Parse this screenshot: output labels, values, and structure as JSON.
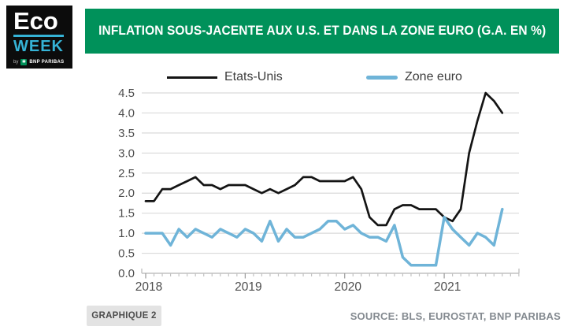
{
  "logo": {
    "line1": "Eco",
    "line2": "WEEK",
    "byline": "by",
    "brand": "BNP PARIBAS"
  },
  "banner": {
    "title": "INFLATION SOUS-JACENTE AUX U.S. ET DANS LA ZONE EURO (G.A. EN %)",
    "bg_color": "#00915a"
  },
  "legend": [
    {
      "label": "Etats-Unis",
      "color": "#141414"
    },
    {
      "label": "Zone euro",
      "color": "#6fb4d8"
    }
  ],
  "footer": {
    "figure_label": "GRAPHIQUE 2",
    "source": "SOURCE: BLS, EUROSTAT, BNP PARIBAS"
  },
  "chart_data": {
    "type": "line",
    "x_start": "2018-01",
    "x_frequency": "monthly",
    "x_tick_labels": [
      "2018",
      "2019",
      "2020",
      "2021"
    ],
    "ylim": [
      0.0,
      4.5
    ],
    "y_tick_step": 0.5,
    "grid": "horizontal",
    "legend_position": "top",
    "series": [
      {
        "name": "Etats-Unis",
        "color": "#141414",
        "values": [
          1.8,
          1.8,
          2.1,
          2.1,
          2.2,
          2.3,
          2.4,
          2.2,
          2.2,
          2.1,
          2.2,
          2.2,
          2.2,
          2.1,
          2.0,
          2.1,
          2.0,
          2.1,
          2.2,
          2.4,
          2.4,
          2.3,
          2.3,
          2.3,
          2.3,
          2.4,
          2.1,
          1.4,
          1.2,
          1.2,
          1.6,
          1.7,
          1.7,
          1.6,
          1.6,
          1.6,
          1.4,
          1.3,
          1.6,
          3.0,
          3.8,
          4.5,
          4.3,
          4.0
        ]
      },
      {
        "name": "Zone euro",
        "color": "#6fb4d8",
        "values": [
          1.0,
          1.0,
          1.0,
          0.7,
          1.1,
          0.9,
          1.1,
          1.0,
          0.9,
          1.1,
          1.0,
          0.9,
          1.1,
          1.0,
          0.8,
          1.3,
          0.8,
          1.1,
          0.9,
          0.9,
          1.0,
          1.1,
          1.3,
          1.3,
          1.1,
          1.2,
          1.0,
          0.9,
          0.9,
          0.8,
          1.2,
          0.4,
          0.2,
          0.2,
          0.2,
          0.2,
          1.4,
          1.1,
          0.9,
          0.7,
          1.0,
          0.9,
          0.7,
          1.6
        ]
      }
    ]
  }
}
